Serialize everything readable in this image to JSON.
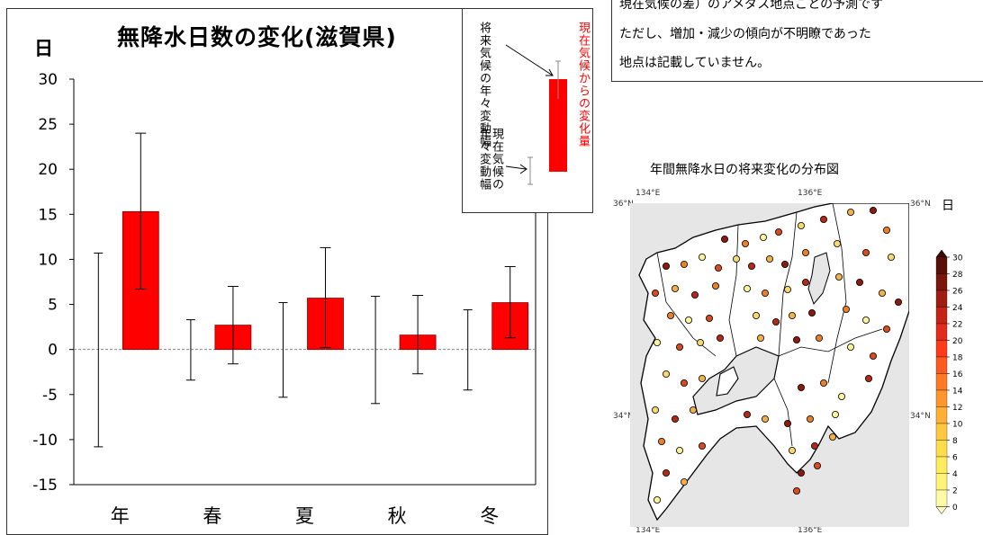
{
  "chart_data": {
    "type": "bar",
    "title": "無降水日数の変化(滋賀県)",
    "ylabel": "日",
    "xlabel": "",
    "categories": [
      "年",
      "春",
      "夏",
      "秋",
      "冬"
    ],
    "ylim": [
      -15,
      30
    ],
    "yticks": [
      30,
      25,
      20,
      15,
      10,
      5,
      0,
      -5,
      -10,
      -15
    ],
    "series": [
      {
        "name": "現在気候からの変化量",
        "values": [
          15.3,
          2.7,
          5.7,
          1.6,
          5.2
        ],
        "color": "#ff0000"
      }
    ],
    "future_variability_range": [
      [
        6.7,
        24.0
      ],
      [
        -1.6,
        7.0
      ],
      [
        0.2,
        11.3
      ],
      [
        -2.7,
        6.0
      ],
      [
        1.3,
        9.2
      ]
    ],
    "present_variability_range": [
      [
        -10.8,
        10.7
      ],
      [
        -3.4,
        3.3
      ],
      [
        -5.3,
        5.2
      ],
      [
        -6.0,
        5.9
      ],
      [
        -4.5,
        4.4
      ]
    ],
    "zero_line": "dashed",
    "grid": false
  },
  "legend": {
    "future_variability": "将来気候の年々変動幅",
    "change_amount": "現在気候からの変化量",
    "present_variability": "現在気候の年々変動幅"
  },
  "text_box": {
    "line1": "現在気候の差）のアメダス地点ごとの予測です",
    "line2": "ただし、増加・減少の傾向が不明瞭であった",
    "line3": "地点は記載していません。"
  },
  "map": {
    "title": "年間無降水日の将来変化の分布図",
    "unit": "日",
    "lon_labels": [
      "134°E",
      "136°E"
    ],
    "lat_labels": [
      "36°N",
      "34°N"
    ],
    "colorbar_ticks": [
      "30",
      "28",
      "26",
      "24",
      "22",
      "20",
      "18",
      "16",
      "14",
      "12",
      "10",
      "8",
      "6",
      "4",
      "2",
      "0"
    ],
    "colors": {
      "high": "#6b1a10",
      "mid": "#ff2200",
      "low": "#ffff80",
      "land": "#ffffff",
      "sea": "#e6e6e6"
    }
  }
}
